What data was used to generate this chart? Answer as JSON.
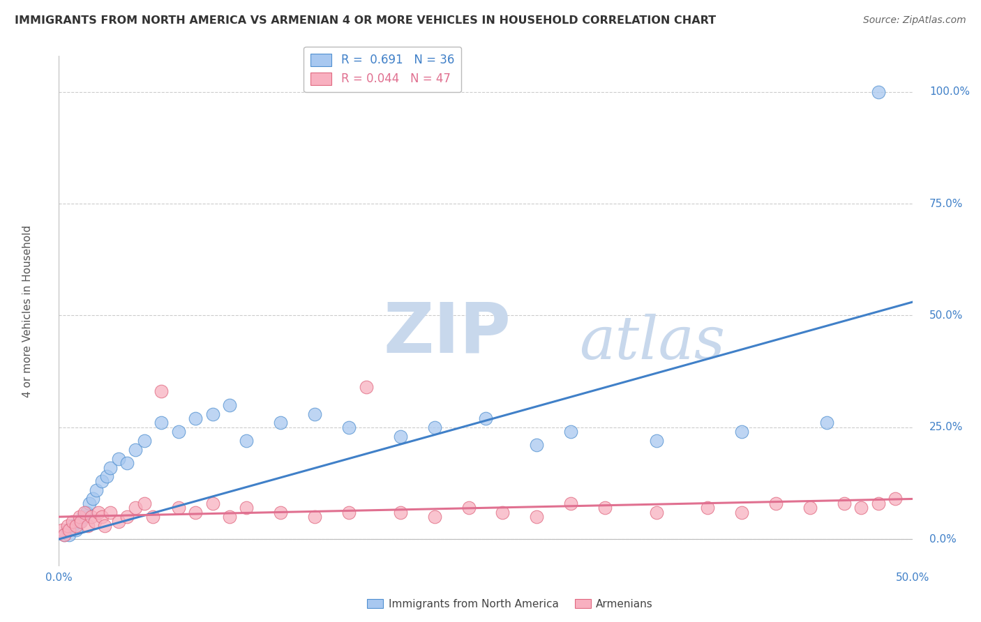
{
  "title": "IMMIGRANTS FROM NORTH AMERICA VS ARMENIAN 4 OR MORE VEHICLES IN HOUSEHOLD CORRELATION CHART",
  "source": "Source: ZipAtlas.com",
  "ylabel": "4 or more Vehicles in Household",
  "yticks": [
    "0.0%",
    "25.0%",
    "50.0%",
    "75.0%",
    "100.0%"
  ],
  "ytick_vals": [
    0,
    25,
    50,
    75,
    100
  ],
  "xlim": [
    0,
    50
  ],
  "ylim": [
    -6,
    108
  ],
  "blue_R": "0.691",
  "blue_N": "36",
  "pink_R": "0.044",
  "pink_N": "47",
  "blue_scatter_x": [
    0.3,
    0.5,
    0.6,
    0.8,
    1.0,
    1.2,
    1.4,
    1.6,
    1.8,
    2.0,
    2.2,
    2.5,
    2.8,
    3.0,
    3.5,
    4.0,
    4.5,
    5.0,
    6.0,
    7.0,
    8.0,
    9.0,
    10.0,
    11.0,
    13.0,
    15.0,
    17.0,
    20.0,
    22.0,
    25.0,
    28.0,
    30.0,
    35.0,
    40.0,
    45.0,
    48.0
  ],
  "blue_scatter_y": [
    1,
    2,
    1,
    3,
    2,
    4,
    5,
    6,
    8,
    9,
    11,
    13,
    14,
    16,
    18,
    17,
    20,
    22,
    26,
    24,
    27,
    28,
    30,
    22,
    26,
    28,
    25,
    23,
    25,
    27,
    21,
    24,
    22,
    24,
    26,
    100
  ],
  "pink_scatter_x": [
    0.2,
    0.3,
    0.5,
    0.6,
    0.8,
    1.0,
    1.2,
    1.3,
    1.5,
    1.7,
    1.9,
    2.1,
    2.3,
    2.5,
    2.7,
    3.0,
    3.5,
    4.0,
    4.5,
    5.0,
    5.5,
    6.0,
    7.0,
    8.0,
    9.0,
    10.0,
    11.0,
    13.0,
    15.0,
    17.0,
    18.0,
    20.0,
    22.0,
    24.0,
    26.0,
    28.0,
    30.0,
    32.0,
    35.0,
    38.0,
    40.0,
    42.0,
    44.0,
    46.0,
    47.0,
    48.0,
    49.0
  ],
  "pink_scatter_y": [
    2,
    1,
    3,
    2,
    4,
    3,
    5,
    4,
    6,
    3,
    5,
    4,
    6,
    5,
    3,
    6,
    4,
    5,
    7,
    8,
    5,
    33,
    7,
    6,
    8,
    5,
    7,
    6,
    5,
    6,
    34,
    6,
    5,
    7,
    6,
    5,
    8,
    7,
    6,
    7,
    6,
    8,
    7,
    8,
    7,
    8,
    9
  ],
  "blue_line_x": [
    0,
    50
  ],
  "blue_line_y": [
    0,
    53
  ],
  "pink_line_x": [
    0,
    50
  ],
  "pink_line_y": [
    5,
    9
  ],
  "blue_color": "#A8C8F0",
  "pink_color": "#F8B0C0",
  "blue_edge_color": "#5090D0",
  "pink_edge_color": "#E06880",
  "blue_line_color": "#4080C8",
  "pink_line_color": "#E07090",
  "watermark_zip": "ZIP",
  "watermark_atlas": "atlas",
  "watermark_color": "#C8D8EC",
  "legend_label_blue": "Immigrants from North America",
  "legend_label_pink": "Armenians",
  "background_color": "#FFFFFF",
  "grid_color": "#CCCCCC",
  "title_color": "#333333",
  "source_color": "#666666",
  "axis_label_color": "#4080C8",
  "ylabel_color": "#555555"
}
